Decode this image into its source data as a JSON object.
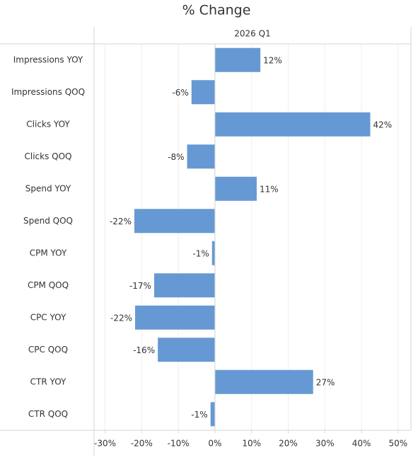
{
  "chart_data": {
    "type": "bar",
    "orientation": "horizontal",
    "title": "% Change",
    "column_header": "2026 Q1",
    "categories": [
      "Impressions YOY",
      "Impressions QOQ",
      "Clicks YOY",
      "Clicks QOQ",
      "Spend YOY",
      "Spend QOQ",
      "CPM YOY",
      "CPM QOQ",
      "CPC YOY",
      "CPC QOQ",
      "CTR YOY",
      "CTR QOQ"
    ],
    "values": [
      12.4,
      -6.4,
      42.4,
      -7.6,
      11.4,
      -22.0,
      -0.8,
      -16.6,
      -21.8,
      -15.6,
      26.8,
      -1.2
    ],
    "value_labels": [
      "12%",
      "-6%",
      "42%",
      "-8%",
      "11%",
      "-22%",
      "-1%",
      "-17%",
      "-22%",
      "-16%",
      "27%",
      "-1%"
    ],
    "color": "#6699d3",
    "xlim": [
      -33,
      53.5
    ],
    "xticks": [
      {
        "value": -30,
        "label": "-30%"
      },
      {
        "value": -20,
        "label": "-20%"
      },
      {
        "value": -10,
        "label": "-10%"
      },
      {
        "value": 0,
        "label": "0%"
      },
      {
        "value": 10,
        "label": "10%"
      },
      {
        "value": 20,
        "label": "20%"
      },
      {
        "value": 30,
        "label": "30%"
      },
      {
        "value": 40,
        "label": "40%"
      },
      {
        "value": 50,
        "label": "50%"
      }
    ],
    "grid": true
  }
}
